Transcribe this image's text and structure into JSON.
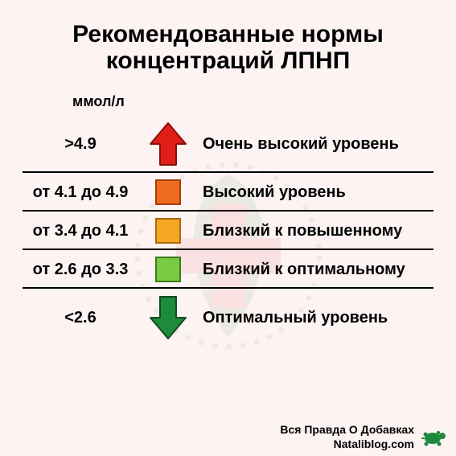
{
  "background_color": "#fdf3f3",
  "title": {
    "text": "Рекомендованные нормы концентраций ЛПНП",
    "fontsize": 30,
    "color": "#000000"
  },
  "unit_label": {
    "text": "ммол/л",
    "fontsize": 18
  },
  "range_fontsize": 20,
  "desc_fontsize": 20,
  "divider_color": "#000000",
  "icon_square_size": 32,
  "arrow": {
    "width": 48,
    "height": 56
  },
  "rows": [
    {
      "range": ">4.9",
      "desc": "Очень высокий уровень",
      "icon": "arrow-up",
      "fill": "#e02018",
      "stroke": "#8a0e0a"
    },
    {
      "range": "от 4.1 до 4.9",
      "desc": "Высокий уровень",
      "icon": "square",
      "fill": "#ed6a1e",
      "stroke": "#a53f09"
    },
    {
      "range": "от 3.4 до 4.1",
      "desc": "Близкий к повышенному",
      "icon": "square",
      "fill": "#f5a623",
      "stroke": "#a86a0a"
    },
    {
      "range": "от 2.6 до 3.3",
      "desc": "Близкий к оптимальному",
      "icon": "square",
      "fill": "#7ac943",
      "stroke": "#3f7a17"
    },
    {
      "range": "<2.6",
      "desc": "Оптимальный уровень",
      "icon": "arrow-down",
      "fill": "#1e8a3c",
      "stroke": "#0d4d20"
    }
  ],
  "footer": {
    "line1": "Вся Правда О Добавках",
    "line2": "Nataliblog.com",
    "fontsize": 14,
    "turtle_color": "#1e8a3c"
  },
  "watermark": {
    "cross_color": "#e02018",
    "leaf_color": "#1e8a3c",
    "circle_stroke": "#1e8a3c"
  }
}
